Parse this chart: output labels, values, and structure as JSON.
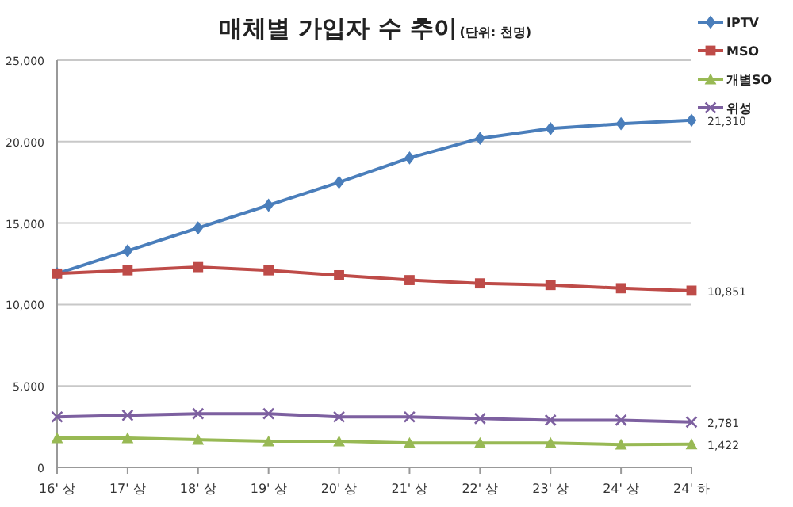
{
  "chart_data": {
    "type": "line",
    "title": "매체별 가입자 수 추이",
    "subtitle": "(단위: 천명)",
    "categories": [
      "16' 상",
      "17' 상",
      "18' 상",
      "19' 상",
      "20' 상",
      "21' 상",
      "22' 상",
      "23' 상",
      "24' 상",
      "24' 하"
    ],
    "ylim": [
      0,
      25000
    ],
    "yticks": [
      {
        "value": 0,
        "label": "0"
      },
      {
        "value": 5000,
        "label": "5,000"
      },
      {
        "value": 10000,
        "label": "10,000"
      },
      {
        "value": 15000,
        "label": "15,000"
      },
      {
        "value": 20000,
        "label": "20,000"
      },
      {
        "value": 25000,
        "label": "25,000"
      }
    ],
    "grid": "y",
    "legend": "top right",
    "line_style": "solid",
    "series": [
      {
        "name": "IPTV",
        "color": "#4a7ebb",
        "marker": "diamond",
        "values": [
          11900,
          13300,
          14700,
          16100,
          17500,
          19000,
          20200,
          20800,
          21100,
          21310
        ],
        "value_labels": [
          null,
          null,
          null,
          null,
          null,
          null,
          null,
          null,
          null,
          "21,310"
        ]
      },
      {
        "name": "MSO",
        "color": "#be4b48",
        "marker": "square",
        "values": [
          11900,
          12100,
          12300,
          12100,
          11800,
          11500,
          11300,
          11200,
          11000,
          10851
        ],
        "value_labels": [
          null,
          null,
          null,
          null,
          null,
          null,
          null,
          null,
          null,
          "10,851"
        ]
      },
      {
        "name": "개별SO",
        "color": "#98b954",
        "marker": "triangle",
        "values": [
          1800,
          1800,
          1700,
          1600,
          1600,
          1500,
          1500,
          1500,
          1400,
          1422
        ],
        "value_labels": [
          null,
          null,
          null,
          null,
          null,
          null,
          null,
          null,
          null,
          "1,422"
        ]
      },
      {
        "name": "위성",
        "color": "#7d60a0",
        "marker": "cross",
        "values": [
          3100,
          3200,
          3300,
          3300,
          3100,
          3100,
          3000,
          2900,
          2900,
          2781
        ],
        "value_labels": [
          null,
          null,
          null,
          null,
          null,
          null,
          null,
          null,
          null,
          "2,781"
        ]
      }
    ]
  }
}
